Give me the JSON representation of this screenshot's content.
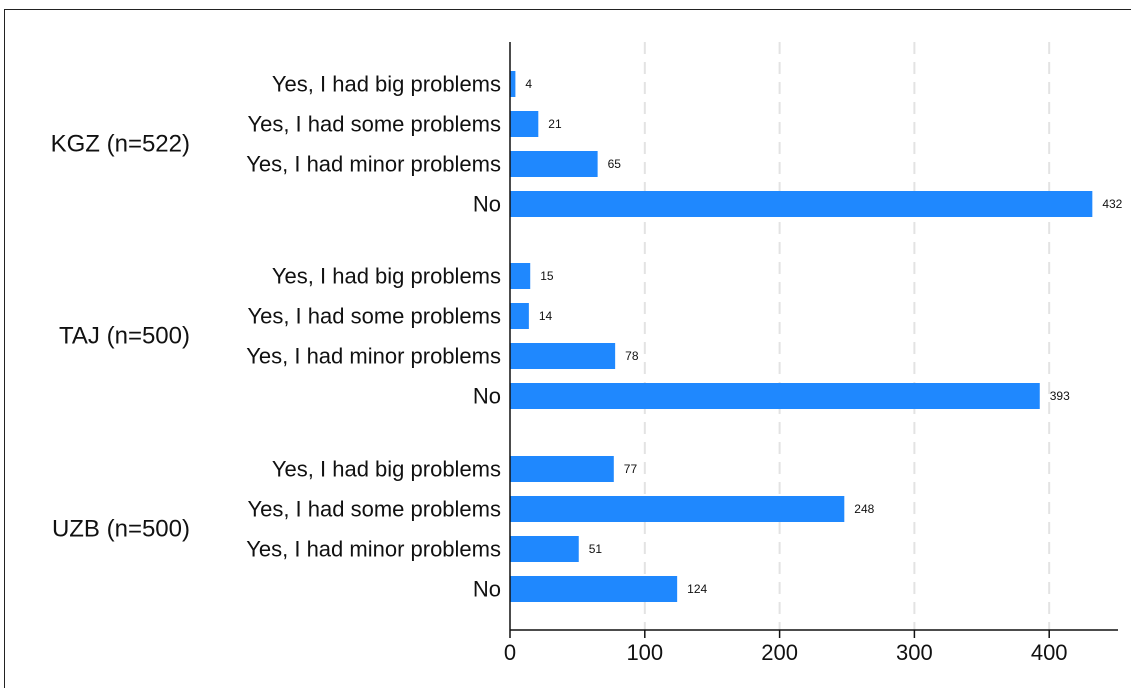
{
  "chart_data": {
    "type": "bar",
    "orientation": "horizontal",
    "groups": [
      {
        "label": "KGZ (n=522)",
        "categories": [
          "Yes, I had big problems",
          "Yes, I had some problems",
          "Yes, I had minor problems",
          "No"
        ],
        "values": [
          4,
          21,
          65,
          432
        ],
        "value_labels": [
          "4",
          "21",
          "65",
          "432"
        ]
      },
      {
        "label": "TAJ (n=500)",
        "categories": [
          "Yes, I had big problems",
          "Yes, I had some problems",
          "Yes, I had minor problems",
          "No"
        ],
        "values": [
          15,
          14,
          78,
          393
        ],
        "value_labels": [
          "15",
          "14",
          "78",
          "393"
        ]
      },
      {
        "label": "UZB (n=500)",
        "categories": [
          "Yes, I had big problems",
          "Yes, I had some problems",
          "Yes, I had minor problems",
          "No"
        ],
        "values": [
          77,
          248,
          51,
          124
        ],
        "value_labels": [
          "77",
          "248",
          "51",
          "124"
        ]
      }
    ],
    "xlim": [
      0,
      450
    ],
    "xticks": [
      0,
      100,
      200,
      300,
      400
    ],
    "xtick_labels": [
      "0",
      "100",
      "200",
      "300",
      "400"
    ],
    "grid": "vertical dashed",
    "bar_color": "#1f88fe",
    "title": "",
    "xlabel": "",
    "ylabel": ""
  }
}
